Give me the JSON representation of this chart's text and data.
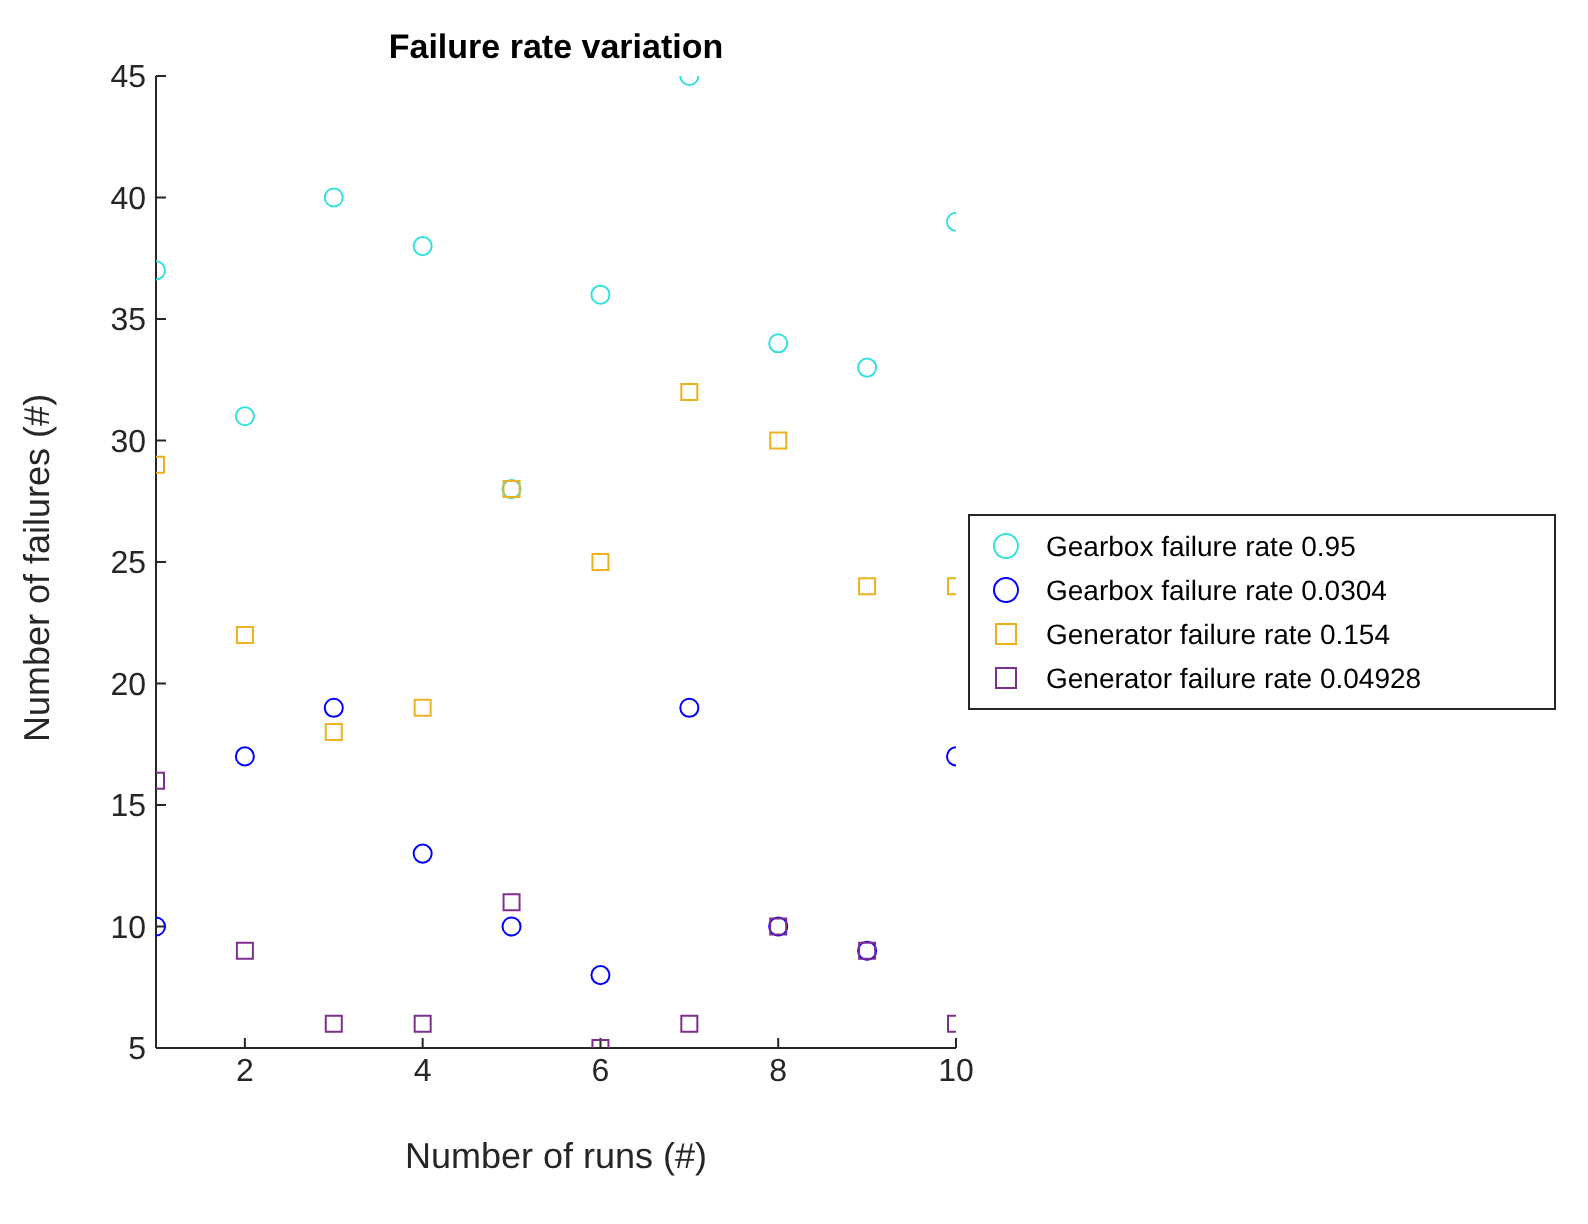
{
  "chart_data": {
    "type": "scatter",
    "title": "Failure rate variation",
    "xlabel": "Number of runs (#)",
    "ylabel": "Number of failures (#)",
    "x": [
      1,
      2,
      3,
      4,
      5,
      6,
      7,
      8,
      9,
      10
    ],
    "xlim": [
      1,
      10
    ],
    "xticks": [
      2,
      4,
      6,
      8,
      10
    ],
    "ylim": [
      5,
      45
    ],
    "yticks": [
      5,
      10,
      15,
      20,
      25,
      30,
      35,
      40,
      45
    ],
    "grid": false,
    "legend": "right",
    "series": [
      {
        "name": "Gearbox failure rate 0.95",
        "color": "#33e0e0",
        "marker": "circle",
        "values": [
          37,
          31,
          40,
          38,
          28,
          36,
          45,
          34,
          33,
          39
        ]
      },
      {
        "name": "Gearbox failure rate 0.0304",
        "color": "#0000ff",
        "marker": "circle",
        "values": [
          10,
          17,
          19,
          13,
          10,
          8,
          19,
          10,
          9,
          17
        ]
      },
      {
        "name": "Generator failure rate 0.154",
        "color": "#edb120",
        "marker": "square",
        "values": [
          29,
          22,
          18,
          19,
          28,
          25,
          32,
          30,
          24,
          24
        ]
      },
      {
        "name": "Generator failure rate 0.04928",
        "color": "#7e2f8e",
        "marker": "square",
        "values": [
          16,
          9,
          6,
          6,
          11,
          5,
          6,
          10,
          9,
          6
        ]
      }
    ]
  }
}
